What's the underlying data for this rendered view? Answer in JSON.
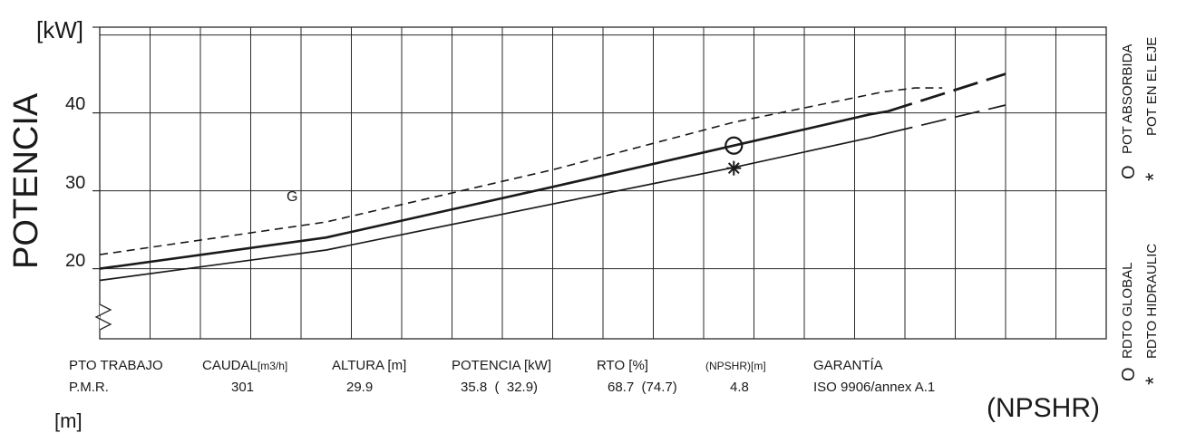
{
  "chart_data": {
    "type": "line",
    "title": "",
    "ylabel": "POTENCIA",
    "yunit": "[kW]",
    "xlabel": "",
    "ylim": [
      11,
      51
    ],
    "xlim": [
      0,
      10
    ],
    "yticks": [
      20,
      30,
      40
    ],
    "grid": true,
    "series": [
      {
        "name": "",
        "style": "dashed",
        "points": [
          [
            0.0,
            21.8
          ],
          [
            2.5,
            26.0
          ],
          [
            5.0,
            32.7
          ],
          [
            7.0,
            38.8
          ],
          [
            8.65,
            42.7
          ],
          [
            9.0,
            43.2
          ],
          [
            9.3,
            43.2
          ]
        ]
      },
      {
        "name": "",
        "style": "solid-bold",
        "points": [
          [
            0.0,
            20.0
          ],
          [
            2.5,
            24.0
          ],
          [
            5.0,
            30.5
          ],
          [
            7.0,
            35.8
          ],
          [
            8.5,
            39.8
          ],
          [
            8.7,
            40.2
          ]
        ]
      },
      {
        "name": "",
        "style": "long-dashed-bold",
        "points": [
          [
            8.7,
            40.2
          ],
          [
            10.0,
            45.0
          ]
        ]
      },
      {
        "name": "",
        "style": "solid",
        "points": [
          [
            0.0,
            18.5
          ],
          [
            2.5,
            22.4
          ],
          [
            5.0,
            28.3
          ],
          [
            7.0,
            33.0
          ],
          [
            8.5,
            36.8
          ],
          [
            8.7,
            37.4
          ]
        ]
      },
      {
        "name": "",
        "style": "long-dashed",
        "points": [
          [
            8.7,
            37.4
          ],
          [
            10.0,
            41.0
          ]
        ]
      }
    ],
    "markers": [
      {
        "symbol": "circle",
        "x": 7.0,
        "y": 35.8,
        "label": "POT ABSORBIDA"
      },
      {
        "symbol": "star",
        "x": 7.0,
        "y": 32.9,
        "label": "POT EN EL EJE"
      }
    ],
    "annotations": [
      {
        "text": "G",
        "x": 2.2,
        "y": 27.2
      }
    ]
  },
  "labels": {
    "y_unit": "[kW]",
    "y_title": "POTENCIA",
    "y_ticks": [
      "20",
      "30",
      "40"
    ],
    "m_unit": "[m]",
    "npshr_title": "(NPSHR)",
    "legend": {
      "pot_absorbida": {
        "symbol": "O",
        "text": "POT ABSORBIDA"
      },
      "pot_eje": {
        "symbol": "*",
        "text": "POT EN EL EJE"
      },
      "rdto_global": {
        "symbol": "O",
        "text": "RDTO GLOBAL"
      },
      "rdto_hidraulic": {
        "symbol": "*",
        "text": "RDTO HIDRAULIC"
      }
    }
  },
  "operating_point": {
    "headers": {
      "pto": "PTO TRABAJO",
      "caudal": "CAUDAL",
      "caudal_unit": "[m3/h]",
      "altura": "ALTURA [m]",
      "potencia": "POTENCIA [kW]",
      "rto": "RTO [%]",
      "npshr": "(NPSHR)[m]",
      "garantia": "GARANTÍA"
    },
    "values": {
      "pto": "P.M.R.",
      "caudal": "301",
      "altura": "29.9",
      "potencia": "35.8  (  32.9)",
      "rto": "68.7  (74.7)",
      "npshr": "4.8",
      "garantia": "ISO 9906/annex A.1"
    }
  },
  "colors": {
    "ink": "#1a1a1a",
    "grid": "#2a2a2a",
    "background": "#ffffff"
  }
}
